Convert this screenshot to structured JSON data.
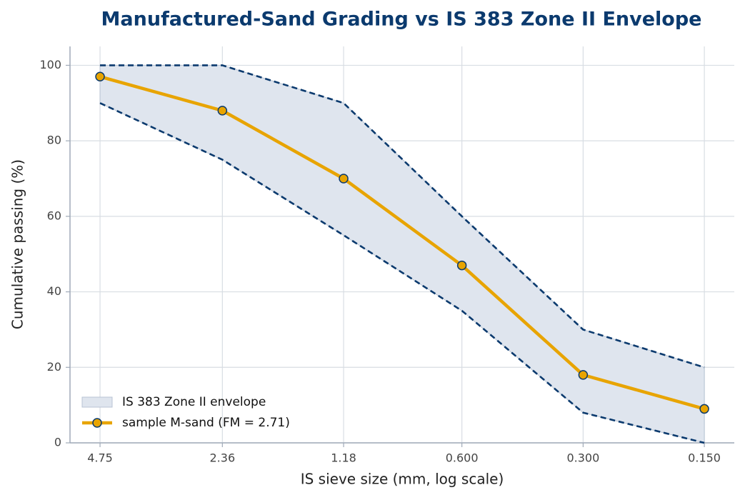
{
  "chart_data": {
    "type": "line",
    "title": "Manufactured-Sand Grading vs IS 383 Zone II Envelope",
    "x_label": "IS sieve size  (mm, log scale)",
    "y_label": "Cumulative passing  (%)",
    "x": [
      4.75,
      2.36,
      1.18,
      0.6,
      0.3,
      0.15
    ],
    "xscale": "log",
    "xlim": [
      5.64,
      0.1264
    ],
    "xticks": [
      4.75,
      2.36,
      1.18,
      {
        "value": 0.6,
        "label": "0.600"
      },
      {
        "value": 0.3,
        "label": "0.300"
      },
      {
        "value": 0.15,
        "label": "0.150"
      }
    ],
    "ylim": [
      0,
      105
    ],
    "yticks": [
      0,
      20,
      40,
      60,
      80,
      100
    ],
    "grid": true,
    "legend": "lower left",
    "envelope": {
      "name": "IS 383 Zone II envelope",
      "color": "#0b3a6e",
      "fill": "#dfe5ee",
      "upper": [
        100,
        100,
        90,
        60,
        30,
        20
      ],
      "lower": [
        90,
        75,
        55,
        35,
        8,
        0
      ]
    },
    "series": [
      {
        "name": "sample M-sand (FM = 2.71)",
        "color": "#e8a400",
        "values": [
          97,
          88,
          70,
          47,
          18,
          9
        ]
      }
    ]
  }
}
